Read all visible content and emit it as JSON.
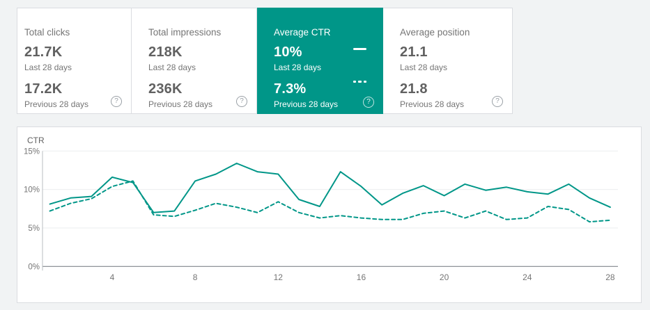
{
  "cards": [
    {
      "title": "Total clicks",
      "current_value": "21.7K",
      "current_label": "Last 28 days",
      "previous_value": "17.2K",
      "previous_label": "Previous 28 days",
      "selected": false
    },
    {
      "title": "Total impressions",
      "current_value": "218K",
      "current_label": "Last 28 days",
      "previous_value": "236K",
      "previous_label": "Previous 28 days",
      "selected": false
    },
    {
      "title": "Average CTR",
      "current_value": "10%",
      "current_label": "Last 28 days",
      "previous_value": "7.3%",
      "previous_label": "Previous 28 days",
      "selected": true
    },
    {
      "title": "Average position",
      "current_value": "21.1",
      "current_label": "Last 28 days",
      "previous_value": "21.8",
      "previous_label": "Previous 28 days",
      "selected": false
    }
  ],
  "icons": {
    "help": "?"
  },
  "colors": {
    "accent_teal": "#009688",
    "card_border": "#dadce0",
    "page_background": "#f1f3f4",
    "value_text": "#616161",
    "label_text": "#757575",
    "gridline": "#ebedef",
    "axis_line": "#80868b"
  },
  "chart_data": {
    "type": "line",
    "title": "CTR",
    "ylabel": "CTR",
    "xlabel": "",
    "x": [
      1,
      2,
      3,
      4,
      5,
      6,
      7,
      8,
      9,
      10,
      11,
      12,
      13,
      14,
      15,
      16,
      17,
      18,
      19,
      20,
      21,
      22,
      23,
      24,
      25,
      26,
      27,
      28
    ],
    "series": [
      {
        "name": "Last 28 days",
        "style": "solid",
        "values": [
          8.1,
          8.9,
          9.1,
          11.6,
          10.9,
          7.0,
          7.2,
          11.1,
          12.0,
          13.4,
          12.3,
          12.0,
          8.7,
          7.8,
          12.3,
          10.4,
          8.0,
          9.5,
          10.5,
          9.2,
          10.7,
          9.9,
          10.3,
          9.7,
          9.4,
          10.7,
          8.9,
          7.7
        ]
      },
      {
        "name": "Previous 28 days",
        "style": "dashed",
        "values": [
          7.2,
          8.2,
          8.8,
          10.4,
          11.1,
          6.7,
          6.5,
          7.3,
          8.2,
          7.7,
          7.0,
          8.4,
          7.0,
          6.3,
          6.6,
          6.3,
          6.1,
          6.1,
          6.9,
          7.2,
          6.3,
          7.2,
          6.1,
          6.3,
          7.8,
          7.4,
          5.8,
          6.0
        ]
      }
    ],
    "x_ticks": [
      4,
      8,
      12,
      16,
      20,
      24,
      28
    ],
    "y_ticks": [
      {
        "label": "0%",
        "value": 0
      },
      {
        "label": "5%",
        "value": 5
      },
      {
        "label": "10%",
        "value": 10
      },
      {
        "label": "15%",
        "value": 15
      }
    ],
    "ylim": [
      0,
      15
    ],
    "grid": true,
    "legend_position": "in-selected-card",
    "line_color": "#009688"
  }
}
